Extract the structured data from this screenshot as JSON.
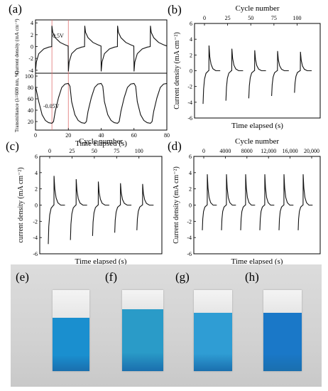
{
  "chart_data": [
    {
      "panel": "(a)",
      "type": "line",
      "sub_panels": [
        {
          "ylabel": "Current density (mA cm⁻²)",
          "yticks": [
            "-4",
            "-2",
            "0",
            "2",
            "4"
          ],
          "ylim": [
            -4.5,
            4.5
          ],
          "annotation": "0.5V",
          "x": [
            0,
            0.5,
            2,
            5,
            8,
            9.9,
            10,
            10.5,
            12,
            15,
            18,
            19.9,
            20,
            20.5,
            22,
            25,
            28,
            29.9,
            30,
            30.5,
            32,
            35,
            38,
            39.9,
            40,
            40.5,
            42,
            45,
            48,
            49.9,
            50,
            50.5,
            52,
            55,
            58,
            59.9,
            60,
            60.5,
            62,
            65,
            68,
            69.9,
            70,
            70.5,
            72,
            75,
            78,
            80
          ],
          "y": [
            -4.2,
            -2.6,
            -1.2,
            -0.4,
            -0.1,
            0,
            3.5,
            2.4,
            1.5,
            0.7,
            0.3,
            0.1,
            -4.2,
            -2.6,
            -1.2,
            -0.4,
            -0.1,
            0,
            3.5,
            2.4,
            1.5,
            0.7,
            0.3,
            0.1,
            -4.2,
            -2.6,
            -1.2,
            -0.4,
            -0.1,
            0,
            3.5,
            2.4,
            1.5,
            0.7,
            0.3,
            0.1,
            -4.2,
            -2.6,
            -1.2,
            -0.4,
            -0.1,
            0,
            3.5,
            2.4,
            1.5,
            0.7,
            0.3,
            0.1
          ]
        },
        {
          "ylabel": "Transmittance (λ=600 nm, %)",
          "yticks": [
            "20",
            "40",
            "60",
            "80",
            "100"
          ],
          "ylim": [
            5,
            105
          ],
          "annotation": "-0.05V",
          "x": [
            0,
            2,
            4,
            6,
            8,
            10,
            11,
            12,
            14,
            16,
            18,
            20,
            21,
            22,
            24,
            26,
            28,
            30,
            31,
            32,
            34,
            36,
            38,
            40,
            41,
            42,
            44,
            46,
            48,
            50,
            51,
            52,
            54,
            56,
            58,
            60,
            61,
            62,
            64,
            66,
            68,
            70,
            71,
            72,
            74,
            76,
            78,
            80
          ],
          "y": [
            82,
            55,
            32,
            22,
            18,
            17,
            20,
            38,
            62,
            80,
            86,
            87,
            82,
            55,
            32,
            22,
            18,
            17,
            20,
            38,
            62,
            80,
            86,
            87,
            82,
            55,
            32,
            22,
            18,
            17,
            20,
            38,
            62,
            80,
            86,
            87,
            82,
            55,
            32,
            22,
            18,
            17,
            20,
            38,
            62,
            80,
            86,
            87
          ]
        }
      ],
      "xlabel": "Time elapsed (s)",
      "xticks": [
        "0",
        "20",
        "40",
        "60",
        "80"
      ],
      "xlim": [
        0,
        80
      ],
      "marker_lines_x": [
        10,
        20
      ]
    },
    {
      "panel": "(b)",
      "type": "line",
      "title": "Cycle number",
      "top_ticks": [
        "0",
        "25",
        "50",
        "75",
        "100"
      ],
      "xlabel": "Time elapsed (s)",
      "ylabel": "Current density (mA cm⁻²)",
      "yticks": [
        "-6",
        "-4",
        "-2",
        "0",
        "2",
        "4",
        "6"
      ],
      "ylim": [
        -6,
        6
      ],
      "cycles": [
        {
          "min": -4.2,
          "peak": 3.2
        },
        {
          "min": -3.8,
          "peak": 2.8
        },
        {
          "min": -3.5,
          "peak": 2.6
        },
        {
          "min": -3.2,
          "peak": 2.5
        },
        {
          "min": -2.8,
          "peak": 2.4
        }
      ]
    },
    {
      "panel": "(c)",
      "type": "line",
      "title": "Cycle number",
      "top_ticks": [
        "0",
        "25",
        "50",
        "75",
        "100"
      ],
      "xlabel": "Time elapsed (s)",
      "ylabel": "current density (mA cm⁻²)",
      "yticks": [
        "-6",
        "-4",
        "-2",
        "0",
        "2",
        "4",
        "6"
      ],
      "ylim": [
        -6,
        6
      ],
      "cycles": [
        {
          "min": -4.8,
          "peak": 3.6
        },
        {
          "min": -4.3,
          "peak": 3.2
        },
        {
          "min": -3.8,
          "peak": 2.9
        },
        {
          "min": -3.4,
          "peak": 2.7
        },
        {
          "min": -3.1,
          "peak": 2.6
        }
      ]
    },
    {
      "panel": "(d)",
      "type": "line",
      "title": "Cycle number",
      "top_ticks": [
        "0",
        "4000",
        "8000",
        "12,000",
        "16,000",
        "20,000"
      ],
      "xlabel": "Time elapsed (s)",
      "ylabel": "Current density (mA cm⁻²)",
      "yticks": [
        "-6",
        "-4",
        "-2",
        "0",
        "2",
        "4",
        "6"
      ],
      "ylim": [
        -6,
        6
      ],
      "cycles": [
        {
          "min": -3.1,
          "peak": 3.8
        },
        {
          "min": -3.1,
          "peak": 3.8
        },
        {
          "min": -3.1,
          "peak": 3.8
        },
        {
          "min": -3.1,
          "peak": 3.8
        },
        {
          "min": -3.1,
          "peak": 3.8
        },
        {
          "min": -3.1,
          "peak": 3.8
        }
      ]
    }
  ],
  "photos": {
    "labels": [
      "(e)",
      "(f)",
      "(g)",
      "(h)"
    ],
    "colors": [
      "#1a8fcf",
      "#2a9bc8",
      "#2f9dd4",
      "#1a78c8"
    ],
    "blue_fraction": [
      0.66,
      0.76,
      0.72,
      0.72
    ]
  }
}
